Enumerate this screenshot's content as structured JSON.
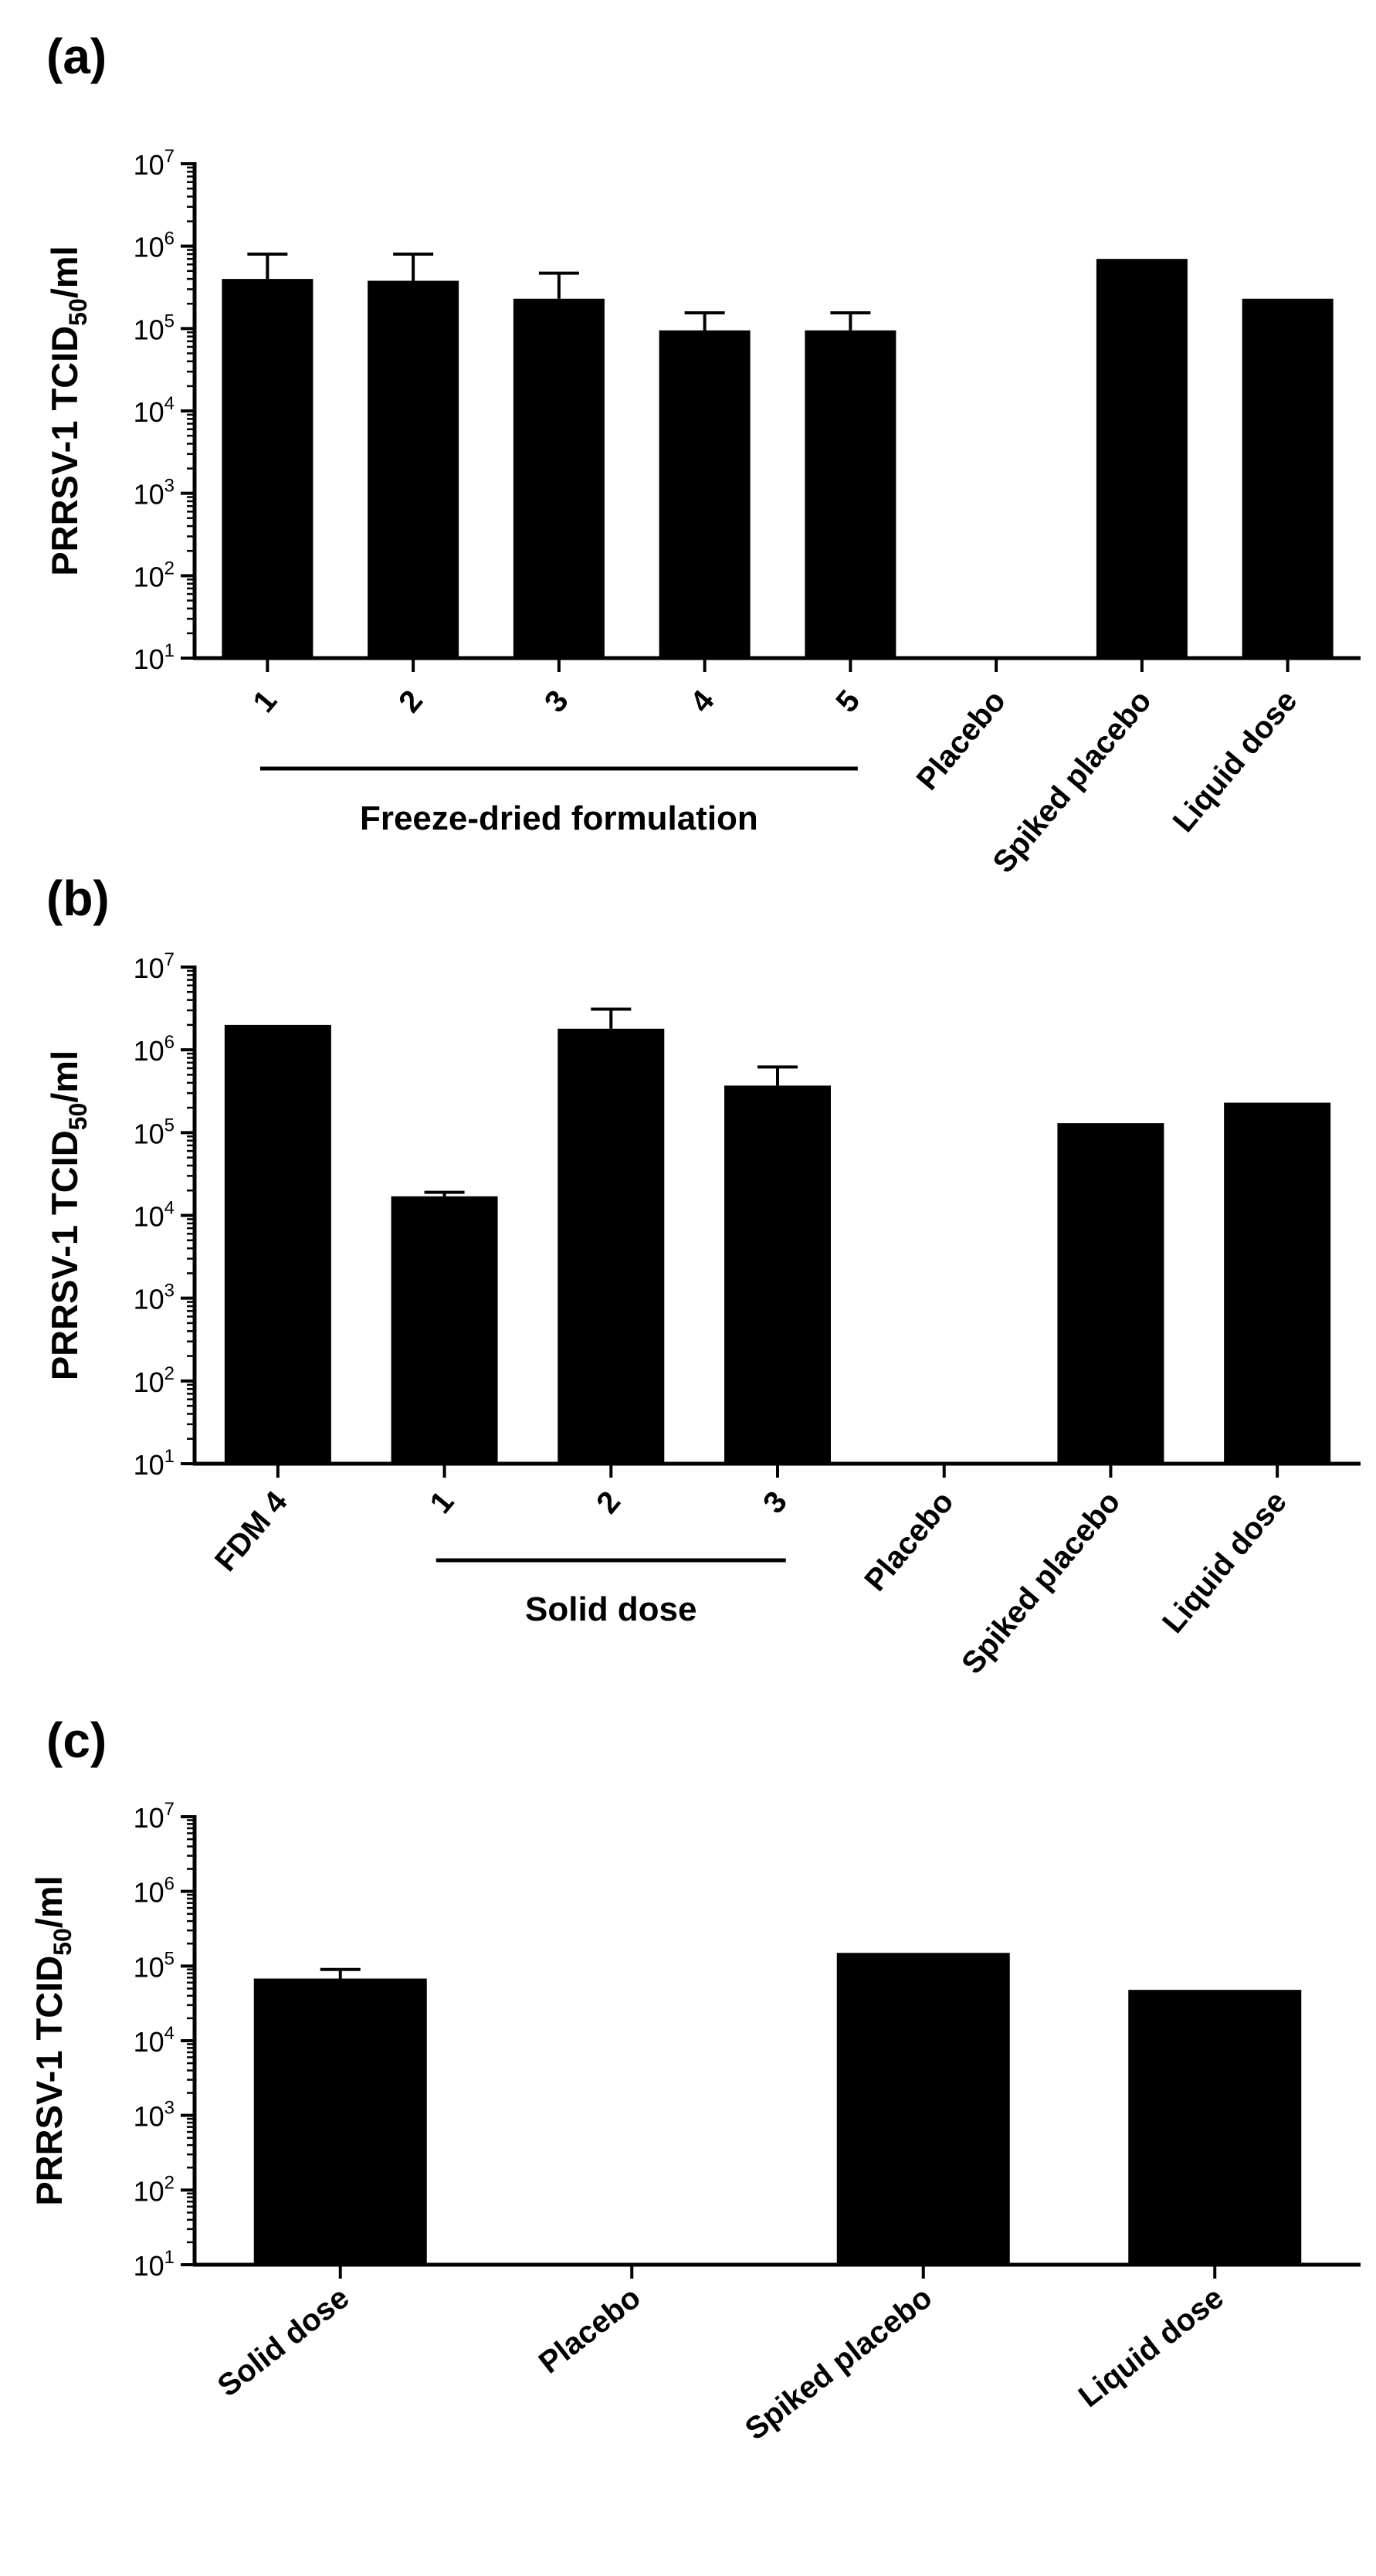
{
  "figure": {
    "panels": [
      "(a)",
      "(b)",
      "(c)"
    ]
  },
  "chart_data": [
    {
      "type": "bar",
      "panel_label": "(a)",
      "title": "",
      "xlabel": "",
      "ylabel": "PRRSV-1 TCID50/ml",
      "ylabel_parts": {
        "prefix": "PRRSV-1 TCID",
        "sub": "50",
        "suffix": "/ml"
      },
      "yscale": "log",
      "ylim": [
        10,
        10000000
      ],
      "yticks": [
        "10^1",
        "10^2",
        "10^3",
        "10^4",
        "10^5",
        "10^6",
        "10^7"
      ],
      "categories": [
        "1",
        "2",
        "3",
        "4",
        "5",
        "Placebo",
        "Spiked placebo",
        "Liquid dose"
      ],
      "values": [
        400000,
        380000,
        230000,
        95000,
        95000,
        10,
        700000,
        230000
      ],
      "error_upper": [
        800000,
        800000,
        470000,
        155000,
        155000,
        null,
        null,
        null
      ],
      "group_labels": [
        {
          "label": "Freeze-dried formulation",
          "from": 0,
          "to": 4
        }
      ]
    },
    {
      "type": "bar",
      "panel_label": "(b)",
      "title": "",
      "xlabel": "",
      "ylabel": "PRRSV-1 TCID50/ml",
      "ylabel_parts": {
        "prefix": "PRRSV-1 TCID",
        "sub": "50",
        "suffix": "/ml"
      },
      "yscale": "log",
      "ylim": [
        10,
        10000000
      ],
      "yticks": [
        "10^1",
        "10^2",
        "10^3",
        "10^4",
        "10^5",
        "10^6",
        "10^7"
      ],
      "categories": [
        "FDM 4",
        "1",
        "2",
        "3",
        "Placebo",
        "Spiked placebo",
        "Liquid dose"
      ],
      "values": [
        2000000,
        17000,
        1800000,
        370000,
        10,
        130000,
        230000
      ],
      "error_upper": [
        null,
        19000,
        3100000,
        620000,
        null,
        null,
        null
      ],
      "group_labels": [
        {
          "label": "Solid dose",
          "from": 1,
          "to": 3
        }
      ]
    },
    {
      "type": "bar",
      "panel_label": "(c)",
      "title": "",
      "xlabel": "",
      "ylabel": "PRRSV-1 TCID50/ml",
      "ylabel_parts": {
        "prefix": "PRRSV-1 TCID",
        "sub": "50",
        "suffix": "/ml"
      },
      "yscale": "log",
      "ylim": [
        10,
        10000000
      ],
      "yticks": [
        "10^1",
        "10^2",
        "10^3",
        "10^4",
        "10^5",
        "10^6",
        "10^7"
      ],
      "categories": [
        "Solid dose",
        "Placebo",
        "Spiked placebo",
        "Liquid dose"
      ],
      "values": [
        68000,
        10,
        150000,
        48000
      ],
      "error_upper": [
        90000,
        null,
        null,
        null
      ],
      "group_labels": []
    }
  ]
}
